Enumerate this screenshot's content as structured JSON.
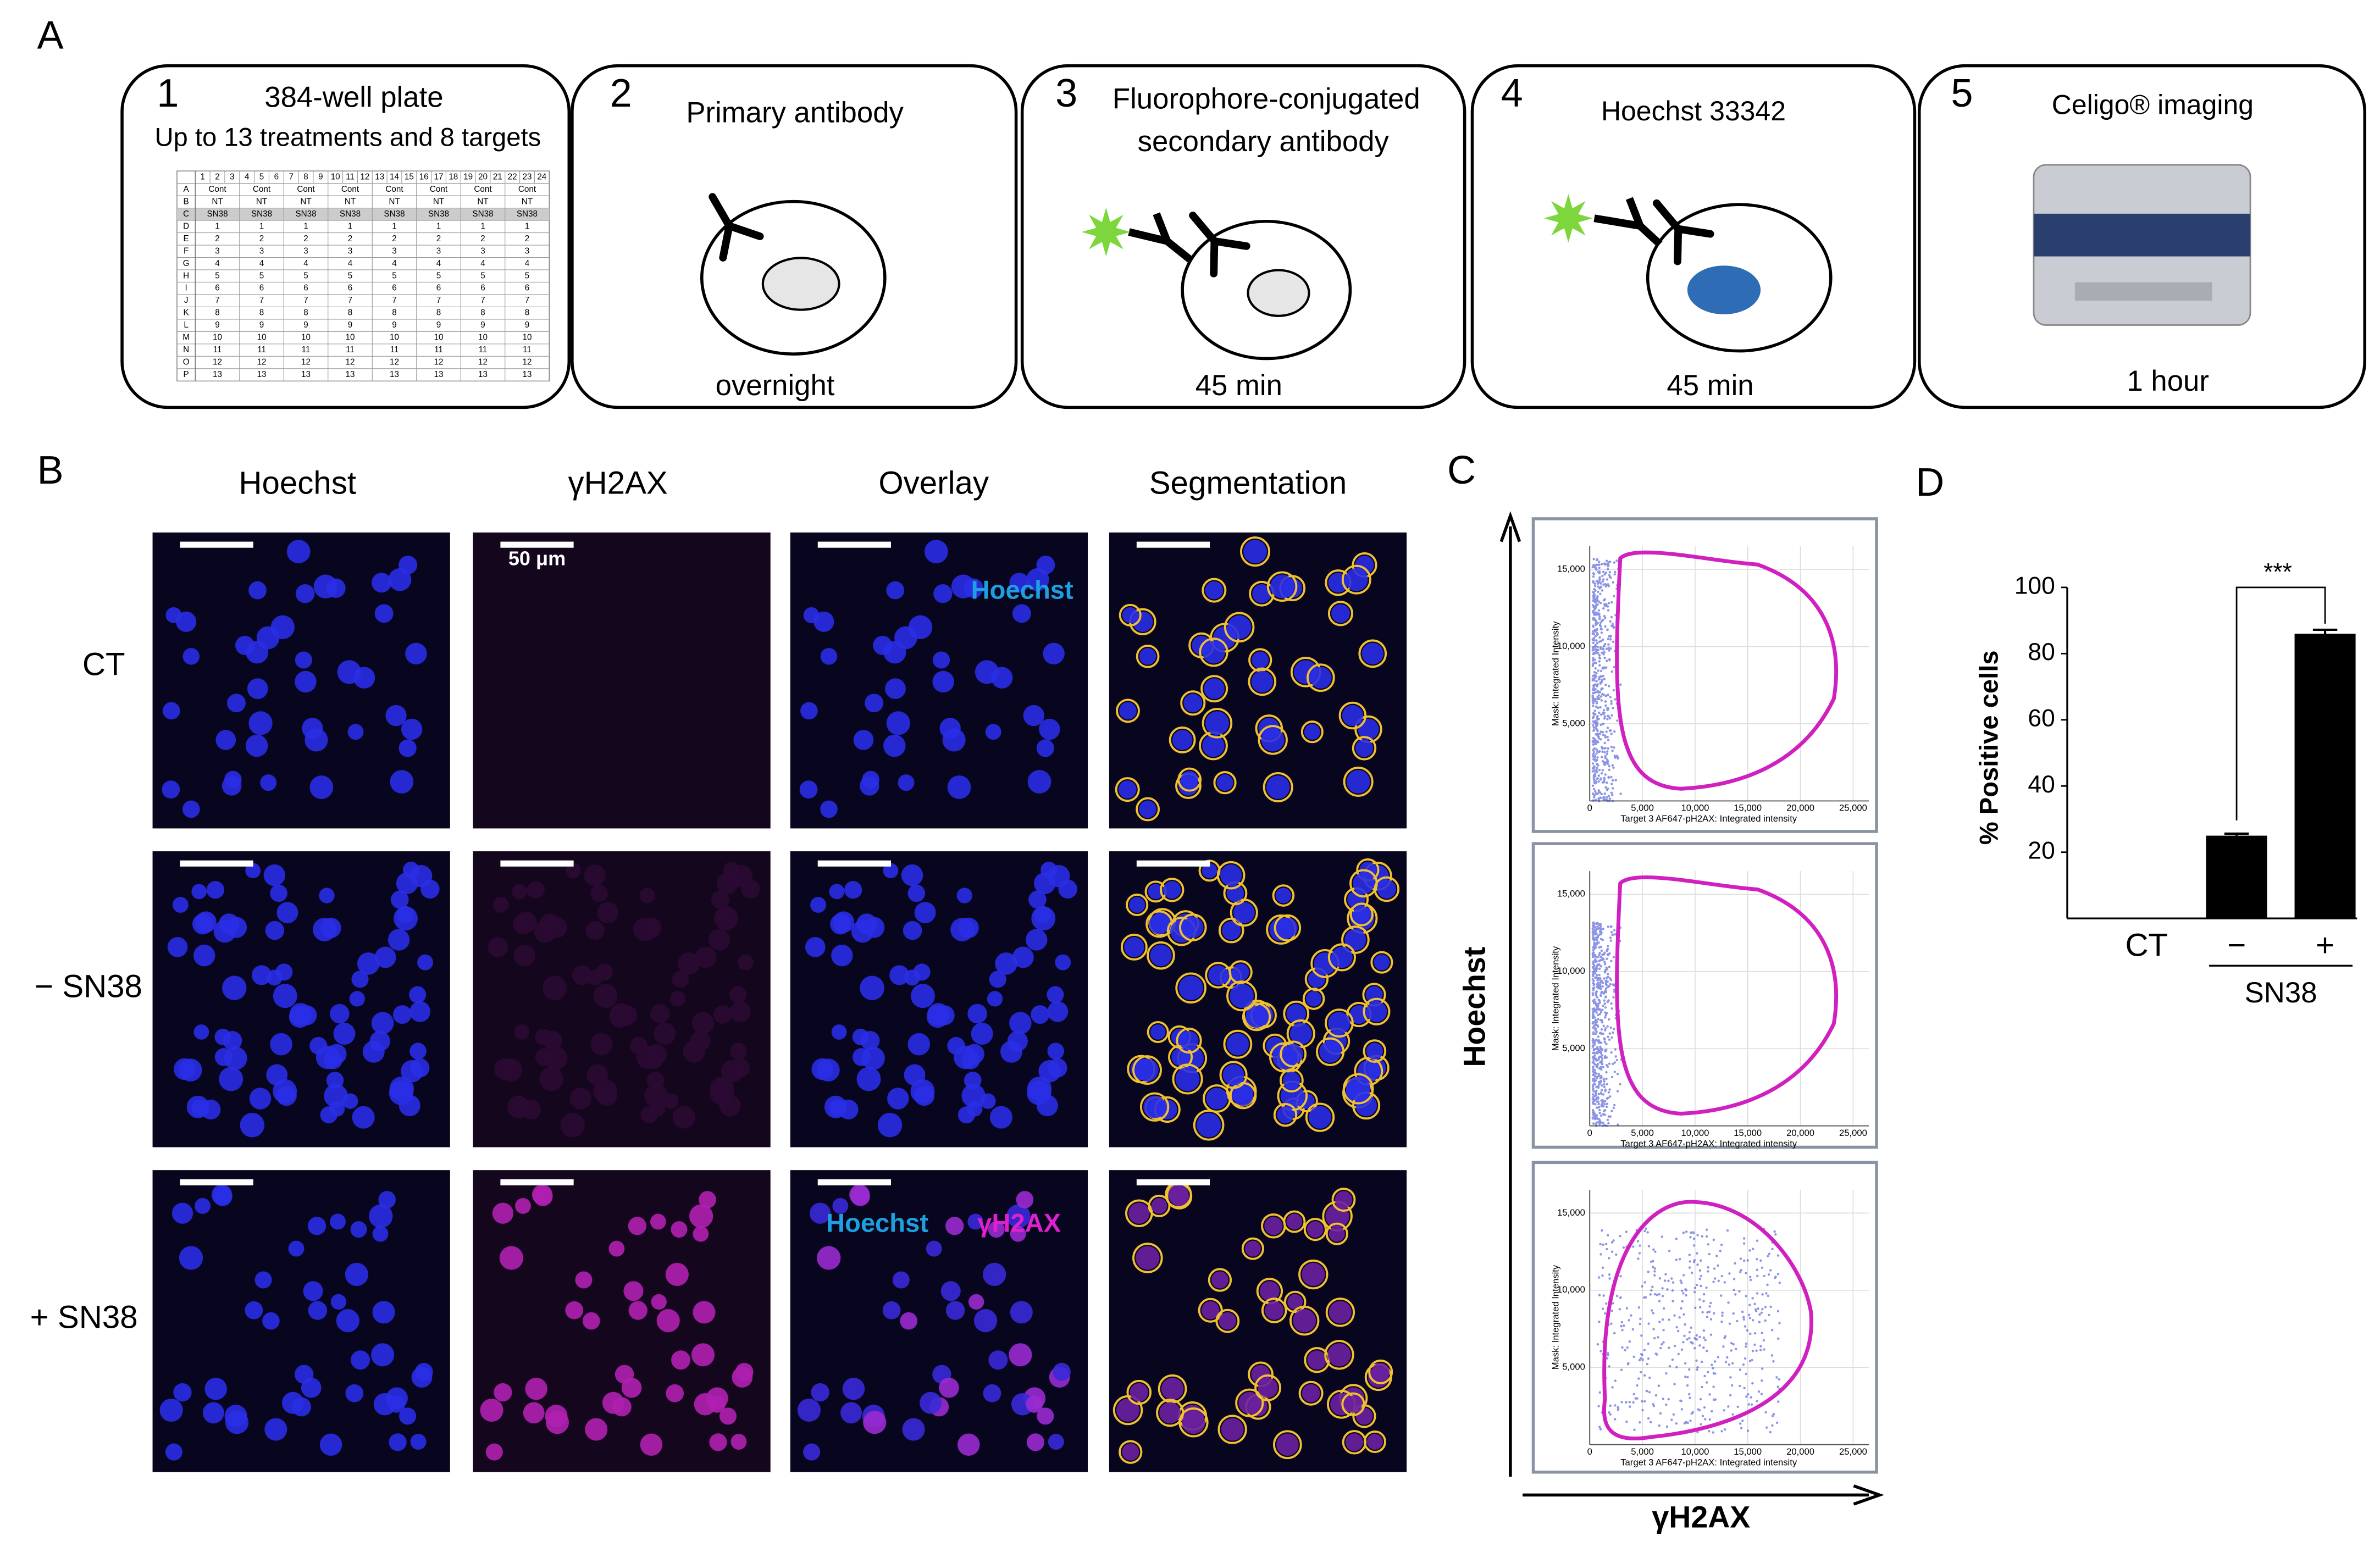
{
  "panel_labels": [
    "A",
    "B",
    "C",
    "D"
  ],
  "steps": [
    {
      "number": "1",
      "title": "384-well plate",
      "subtitle": "Up to 13 treatments and 8 targets"
    },
    {
      "number": "2",
      "title": "Primary antibody",
      "time": "overnight"
    },
    {
      "number": "3",
      "title": "Fluorophore-conjugated",
      "subtitle": "secondary antibody",
      "time": "45 min"
    },
    {
      "number": "4",
      "title": "Hoechst 33342",
      "time": "45 min"
    },
    {
      "number": "5",
      "title": "Celigo® imaging",
      "time": "1 hour"
    }
  ],
  "plate": {
    "columns": [
      "1",
      "2",
      "3",
      "4",
      "5",
      "6",
      "7",
      "8",
      "9",
      "10",
      "11",
      "12",
      "13",
      "14",
      "15",
      "16",
      "17",
      "18",
      "19",
      "20",
      "21",
      "22",
      "23",
      "24"
    ],
    "rows": [
      {
        "label": "A",
        "cells": [
          "Cont",
          "Cont",
          "Cont",
          "Cont",
          "Cont",
          "Cont",
          "Cont",
          "Cont"
        ]
      },
      {
        "label": "B",
        "cells": [
          "NT",
          "NT",
          "NT",
          "NT",
          "NT",
          "NT",
          "NT",
          "NT"
        ]
      },
      {
        "label": "C",
        "cells": [
          "SN38",
          "SN38",
          "SN38",
          "SN38",
          "SN38",
          "SN38",
          "SN38",
          "SN38"
        ]
      },
      {
        "label": "D",
        "cells": [
          "1",
          "1",
          "1",
          "1",
          "1",
          "1",
          "1",
          "1"
        ]
      },
      {
        "label": "E",
        "cells": [
          "2",
          "2",
          "2",
          "2",
          "2",
          "2",
          "2",
          "2"
        ]
      },
      {
        "label": "F",
        "cells": [
          "3",
          "3",
          "3",
          "3",
          "3",
          "3",
          "3",
          "3"
        ]
      },
      {
        "label": "G",
        "cells": [
          "4",
          "4",
          "4",
          "4",
          "4",
          "4",
          "4",
          "4"
        ]
      },
      {
        "label": "H",
        "cells": [
          "5",
          "5",
          "5",
          "5",
          "5",
          "5",
          "5",
          "5"
        ]
      },
      {
        "label": "I",
        "cells": [
          "6",
          "6",
          "6",
          "6",
          "6",
          "6",
          "6",
          "6"
        ]
      },
      {
        "label": "J",
        "cells": [
          "7",
          "7",
          "7",
          "7",
          "7",
          "7",
          "7",
          "7"
        ]
      },
      {
        "label": "K",
        "cells": [
          "8",
          "8",
          "8",
          "8",
          "8",
          "8",
          "8",
          "8"
        ]
      },
      {
        "label": "L",
        "cells": [
          "9",
          "9",
          "9",
          "9",
          "9",
          "9",
          "9",
          "9"
        ]
      },
      {
        "label": "M",
        "cells": [
          "10",
          "10",
          "10",
          "10",
          "10",
          "10",
          "10",
          "10"
        ]
      },
      {
        "label": "N",
        "cells": [
          "11",
          "11",
          "11",
          "11",
          "11",
          "11",
          "11",
          "11"
        ]
      },
      {
        "label": "O",
        "cells": [
          "12",
          "12",
          "12",
          "12",
          "12",
          "12",
          "12",
          "12"
        ]
      },
      {
        "label": "P",
        "cells": [
          "13",
          "13",
          "13",
          "13",
          "13",
          "13",
          "13",
          "13"
        ]
      }
    ]
  },
  "imaging": {
    "columns": [
      "Hoechst",
      "γH2AX",
      "Overlay",
      "Segmentation"
    ],
    "rows": [
      "CT",
      "− SN38",
      "+ SN38"
    ],
    "scale_bar": "50 μm",
    "overlay_labels": [
      "Hoechst",
      "γH2AX"
    ]
  },
  "flow": {
    "y_title": "Hoechst",
    "x_title": "γH2AX",
    "xlabel": "Target 3 AF647-pH2AX: Integrated intensity",
    "ylabel": "Mask: Integrated Intensity",
    "xlim": [
      0,
      26500
    ],
    "ylim": [
      0,
      16500
    ],
    "xticks": [
      0,
      {
        "value": 5000,
        "label": "5,000"
      },
      {
        "value": 10000,
        "label": "10,000"
      },
      {
        "value": 15000,
        "label": "15,000"
      },
      {
        "value": 20000,
        "label": "20,000"
      },
      {
        "value": 25000,
        "label": "25,000"
      }
    ],
    "yticks": [
      {
        "value": 5000,
        "label": "5,000"
      },
      {
        "value": 10000,
        "label": "10,000"
      },
      {
        "value": 15000,
        "label": "15,000"
      }
    ]
  },
  "chart_data": {
    "type": "bar",
    "ylabel": "% Positive cells",
    "categories": [
      "CT",
      "−",
      "+"
    ],
    "group_label": "SN38",
    "values": [
      0,
      25,
      86
    ],
    "errors": [
      0,
      0.6,
      1.2
    ],
    "significance": "***",
    "ylim": [
      0,
      100
    ],
    "yticks": [
      20,
      40,
      60,
      80,
      100
    ],
    "color": "#000000"
  }
}
